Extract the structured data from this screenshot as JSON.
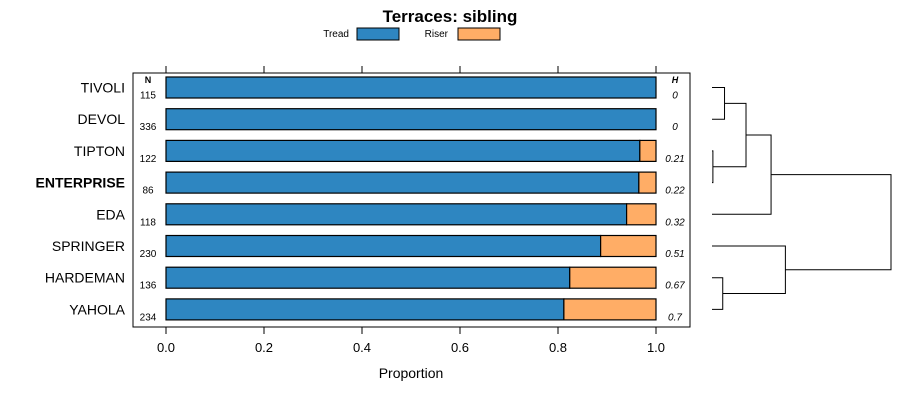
{
  "chart_data": {
    "type": "bar",
    "stacked": true,
    "orientation": "horizontal",
    "title": "Terraces: sibling",
    "xlabel": "Proportion",
    "ylabel": "",
    "xlim": [
      0,
      1
    ],
    "x_ticks": [
      "0.0",
      "0.2",
      "0.4",
      "0.6",
      "0.8",
      "1.0"
    ],
    "x_tick_values": [
      0,
      0.2,
      0.4,
      0.6,
      0.8,
      1.0
    ],
    "n_header": "N",
    "h_header": "H",
    "legend": [
      {
        "name": "Tread",
        "color": "#2e86c1"
      },
      {
        "name": "Riser",
        "color": "#ffad66"
      }
    ],
    "categories": [
      "TIVOLI",
      "DEVOL",
      "TIPTON",
      "ENTERPRISE",
      "EDA",
      "SPRINGER",
      "HARDEMAN",
      "YAHOLA"
    ],
    "highlighted": "ENTERPRISE",
    "n": [
      "115",
      "336",
      "122",
      "86",
      "118",
      "230",
      "136",
      "234"
    ],
    "h": [
      "0",
      "0",
      "0.21",
      "0.22",
      "0.32",
      "0.51",
      "0.67",
      "0.7"
    ],
    "series": [
      {
        "name": "Tread",
        "values": [
          1.0,
          1.0,
          0.967,
          0.965,
          0.94,
          0.887,
          0.824,
          0.812
        ]
      },
      {
        "name": "Riser",
        "values": [
          0.0,
          0.0,
          0.033,
          0.035,
          0.06,
          0.113,
          0.176,
          0.188
        ]
      }
    ],
    "dendrogram": {
      "leaves": [
        "TIVOLI",
        "DEVOL",
        "TIPTON",
        "ENTERPRISE",
        "EDA",
        "SPRINGER",
        "HARDEMAN",
        "YAHOLA"
      ],
      "merges": [
        {
          "a": "TIPTON",
          "b": "ENTERPRISE",
          "height": 0.005
        },
        {
          "a": "TIVOLI",
          "b": "DEVOL",
          "height": 0.07
        },
        {
          "a": "HARDEMAN",
          "b": "YAHOLA",
          "height": 0.06
        },
        {
          "a": "TIVOLI|DEVOL",
          "b": "TIPTON|ENTERPRISE",
          "height": 0.19
        },
        {
          "a": "TIVOLI|DEVOL|TIPTON|ENTERPRISE",
          "b": "EDA",
          "height": 0.33
        },
        {
          "a": "SPRINGER",
          "b": "HARDEMAN|YAHOLA",
          "height": 0.41
        },
        {
          "a": "TIVOLI|DEVOL|TIPTON|ENTERPRISE|EDA",
          "b": "SPRINGER|HARDEMAN|YAHOLA",
          "height": 1.0
        }
      ]
    }
  }
}
